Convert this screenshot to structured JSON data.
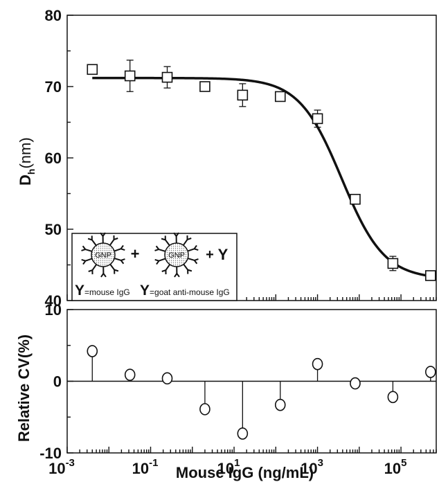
{
  "chart_data": [
    {
      "type": "scatter",
      "title": "",
      "xlabel": "",
      "ylabel": "D",
      "ylabel_subscript": "h",
      "ylabel_unit": "(nm)",
      "xscale": "log",
      "xlim": [
        0.001,
        700000
      ],
      "ylim": [
        40,
        80
      ],
      "yticks": [
        "40",
        "50",
        "60",
        "70",
        "80"
      ],
      "series": [
        {
          "marker": "open-square",
          "x": [
            0.004,
            0.032,
            0.25,
            2.0,
            16,
            128,
            1000,
            8000,
            64000,
            512000
          ],
          "y": [
            72.4,
            71.5,
            71.3,
            70.0,
            68.8,
            68.6,
            65.5,
            54.2,
            45.2,
            43.5
          ],
          "err": [
            0.6,
            2.2,
            1.5,
            0.5,
            1.6,
            0.6,
            1.2,
            0.6,
            1.0,
            0.4
          ]
        }
      ],
      "fit_curve": {
        "top": 71.2,
        "bottom": 43.0,
        "ec50": 3800,
        "hill": 0.85
      },
      "inset": {
        "plus1": "+",
        "plus2": "+",
        "free_symbol": "Y",
        "gnp1": "GNP",
        "gnp2": "GNP",
        "legend1_symbol": "Y",
        "legend1_text": "=mouse IgG",
        "legend2_symbol": "Y",
        "legend2_text": "=goat anti-mouse IgG"
      }
    },
    {
      "type": "scatter",
      "title": "",
      "xlabel": "Mouse IgG (ng/mL)",
      "ylabel": "Relative CV(%)",
      "xscale": "log",
      "xlim": [
        0.001,
        700000
      ],
      "ylim": [
        -10,
        10
      ],
      "yticks": [
        "-10",
        "0",
        "10"
      ],
      "xticks": [
        {
          "base": "10",
          "exp": "-3"
        },
        {
          "base": "10",
          "exp": "-1"
        },
        {
          "base": "10",
          "exp": "1"
        },
        {
          "base": "10",
          "exp": "3"
        },
        {
          "base": "10",
          "exp": "5"
        }
      ],
      "series": [
        {
          "marker": "open-circle",
          "x": [
            0.004,
            0.032,
            0.25,
            2.0,
            16,
            128,
            1000,
            8000,
            64000,
            512000
          ],
          "y": [
            4.2,
            0.9,
            0.4,
            -3.9,
            -7.3,
            -3.3,
            2.4,
            -0.3,
            -2.2,
            1.3
          ]
        }
      ]
    }
  ]
}
